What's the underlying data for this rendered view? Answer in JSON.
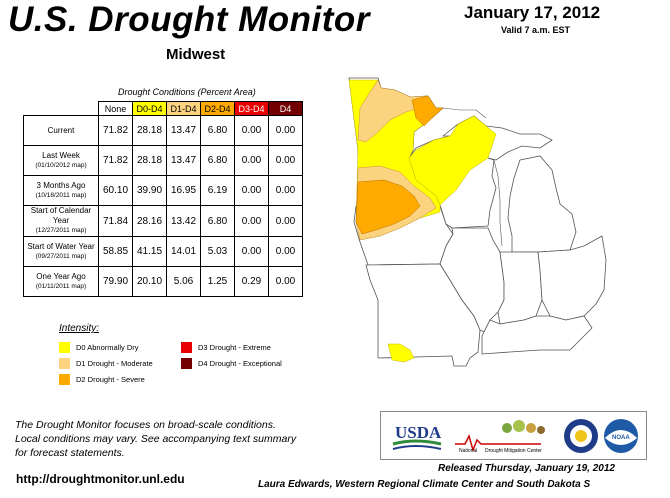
{
  "header": {
    "title": "U.S. Drought Monitor",
    "region": "Midwest",
    "date": "January 17, 2012",
    "valid": "Valid 7 a.m. EST"
  },
  "table": {
    "caption": "Drought Conditions (Percent Area)",
    "columns": [
      "None",
      "D0-D4",
      "D1-D4",
      "D2-D4",
      "D3-D4",
      "D4"
    ],
    "column_colors": [
      "#ffffff",
      "#ffff00",
      "#fcd37f",
      "#ffaa00",
      "#e60000",
      "#730000"
    ],
    "column_text_colors": [
      "#000000",
      "#000000",
      "#000000",
      "#000000",
      "#ffffff",
      "#ffffff"
    ],
    "rows": [
      {
        "label": "Current",
        "sublabel": "",
        "values": [
          "71.82",
          "28.18",
          "13.47",
          "6.80",
          "0.00",
          "0.00"
        ]
      },
      {
        "label": "Last Week",
        "sublabel": "(01/10/2012 map)",
        "values": [
          "71.82",
          "28.18",
          "13.47",
          "6.80",
          "0.00",
          "0.00"
        ]
      },
      {
        "label": "3 Months Ago",
        "sublabel": "(10/18/2011 map)",
        "values": [
          "60.10",
          "39.90",
          "16.95",
          "6.19",
          "0.00",
          "0.00"
        ]
      },
      {
        "label": "Start of Calendar Year",
        "sublabel": "(12/27/2011 map)",
        "values": [
          "71.84",
          "28.16",
          "13.42",
          "6.80",
          "0.00",
          "0.00"
        ]
      },
      {
        "label": "Start of Water Year",
        "sublabel": "(09/27/2011 map)",
        "values": [
          "58.85",
          "41.15",
          "14.01",
          "5.03",
          "0.00",
          "0.00"
        ]
      },
      {
        "label": "One Year Ago",
        "sublabel": "(01/11/2011 map)",
        "values": [
          "79.90",
          "20.10",
          "5.06",
          "1.25",
          "0.29",
          "0.00"
        ]
      }
    ]
  },
  "legend": {
    "title": "Intensity:",
    "items": [
      {
        "label": "D0 Abnormally Dry",
        "color": "#ffff00"
      },
      {
        "label": "D1 Drought - Moderate",
        "color": "#fcd37f"
      },
      {
        "label": "D2 Drought - Severe",
        "color": "#ffaa00"
      },
      {
        "label": "D3 Drought - Extreme",
        "color": "#e60000"
      },
      {
        "label": "D4 Drought - Exceptional",
        "color": "#730000"
      }
    ]
  },
  "footer": {
    "note_line1": "The Drought Monitor focuses on broad-scale conditions.",
    "note_line2": "Local conditions may vary. See accompanying text summary",
    "note_line3": "for forecast statements.",
    "url": "http://droughtmonitor.unl.edu",
    "released": "Released Thursday, January 19, 2012",
    "authors": "Laura Edwards, Western Regional Climate Center and South Dakota S"
  },
  "logos": {
    "usda": "USDA",
    "ndmc_line1": "National",
    "ndmc_line2": "Drought Mitigation Center",
    "noaa": "NOAA"
  }
}
